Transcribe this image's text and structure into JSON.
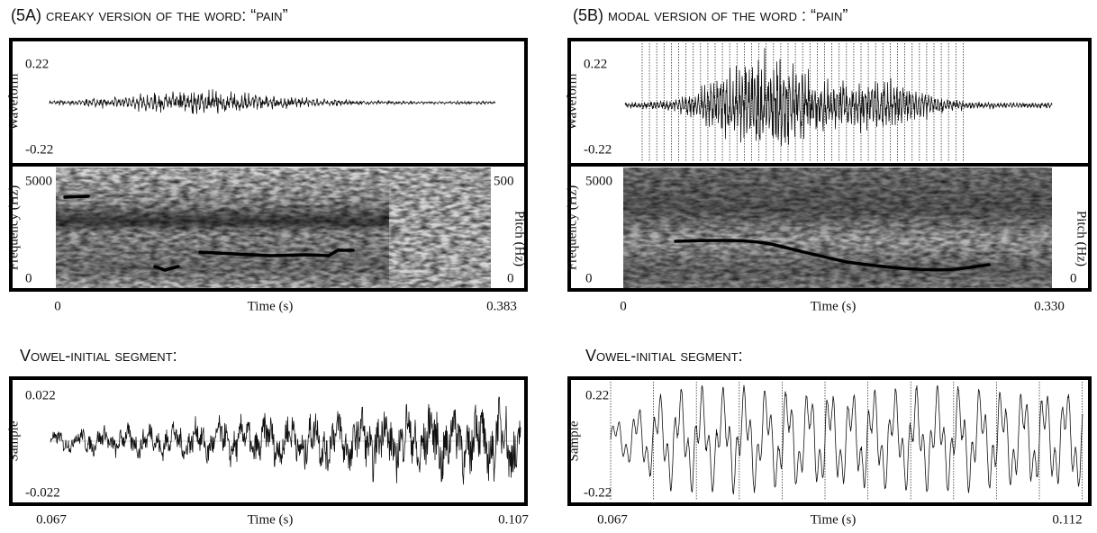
{
  "panel_a": {
    "title": "(5A) creaky version of the word: “pain”",
    "waveform": {
      "ylabel": "Waveform",
      "ymax": "0.22",
      "ymin": "-0.22"
    },
    "spectrogram": {
      "ylabel": "Frequency (Hz)",
      "ymax": "5000",
      "ymin": "0",
      "y2label": "Pitch (Hz)",
      "y2max": "500",
      "y2min": "0"
    },
    "xlabel": "Time (s)",
    "xmin": "0",
    "xmax": "0.383"
  },
  "panel_b": {
    "title": "(5B) modal version of the word : “pain”",
    "waveform": {
      "ylabel": "Waveform",
      "ymax": "0.22",
      "ymin": "-0.22"
    },
    "spectrogram": {
      "ylabel": "Frequency (Hz)",
      "ymax": "5000",
      "ymin": "0",
      "y2label": "Pitch (Hz)",
      "y2min": "0"
    },
    "xlabel": "Time (s)",
    "xmin": "0",
    "xmax": "0.330"
  },
  "segment_a": {
    "title": "Vowel-initial segment:",
    "ylabel": "Sample",
    "ymax": "0.022",
    "ymin": "-0.022",
    "xlabel": "Time (s)",
    "xmin": "0.067",
    "xmax": "0.107"
  },
  "segment_b": {
    "title": "Vowel-initial segment:",
    "ylabel": "Sample",
    "ymax": "0.22",
    "ymin": "-0.22",
    "xlabel": "Time (s)",
    "xmin": "0.067",
    "xmax": "0.112"
  }
}
